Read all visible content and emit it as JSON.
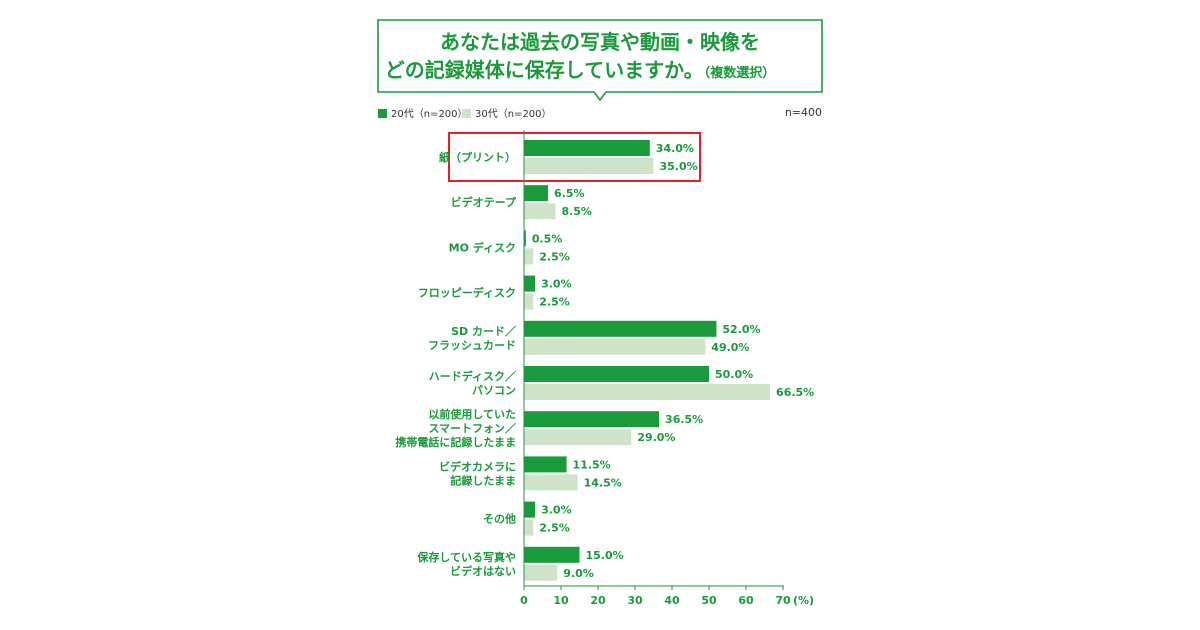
{
  "header": {
    "title_line1": "あなたは過去の写真や動画・映像を",
    "title_line2": "どの記録媒体に保存していますか。",
    "title_suffix": "（複数選択）"
  },
  "note": "n=400",
  "colors": {
    "series_20s": "#1a9a3a",
    "series_30s": "#cfe3c8",
    "accent_text": "#1a9a3a",
    "highlight_box": "#e0222c"
  },
  "chart_data": {
    "type": "bar",
    "orientation": "horizontal",
    "categories": [
      [
        "紙（プリント）"
      ],
      [
        "ビデオテープ"
      ],
      [
        "MO ディスク"
      ],
      [
        "フロッピーディスク"
      ],
      [
        "SD カード／",
        "フラッシュカード"
      ],
      [
        "ハードディスク／",
        "パソコン"
      ],
      [
        "以前使用していた",
        "スマートフォン／",
        "携帯電話に記録したまま"
      ],
      [
        "ビデオカメラに",
        "記録したまま"
      ],
      [
        "その他"
      ],
      [
        "保存している写真や",
        "ビデオはない"
      ]
    ],
    "series": [
      {
        "name": "20代（n=200）",
        "values": [
          34.0,
          6.5,
          0.5,
          3.0,
          52.0,
          50.0,
          36.5,
          11.5,
          3.0,
          15.0
        ]
      },
      {
        "name": "30代（n=200）",
        "values": [
          35.0,
          8.5,
          2.5,
          2.5,
          49.0,
          66.5,
          29.0,
          14.5,
          2.5,
          9.0
        ]
      }
    ],
    "value_labels": [
      [
        "34.0%",
        "6.5%",
        "0.5%",
        "3.0%",
        "52.0%",
        "50.0%",
        "36.5%",
        "11.5%",
        "3.0%",
        "15.0%"
      ],
      [
        "35.0%",
        "8.5%",
        "2.5%",
        "2.5%",
        "49.0%",
        "66.5%",
        "29.0%",
        "14.5%",
        "2.5%",
        "9.0%"
      ]
    ],
    "xlim": [
      0,
      70
    ],
    "xticks": [
      0,
      10,
      20,
      30,
      40,
      50,
      60,
      70
    ],
    "xtick_labels": [
      "0",
      "10",
      "20",
      "30",
      "40",
      "50",
      "60",
      "70"
    ],
    "x_unit": "(%)",
    "highlighted_category_index": 0,
    "legend_position": "top-left",
    "grid": false
  }
}
